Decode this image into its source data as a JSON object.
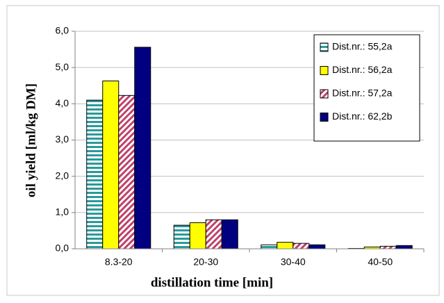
{
  "chart_data": {
    "type": "bar",
    "x_label": "distillation time [min]",
    "y_label": "oil yield [ml/kg DM]",
    "categories": [
      "8.3-20",
      "20-30",
      "30-40",
      "40-50"
    ],
    "series": [
      {
        "name": "Dist.nr.: 55,2a",
        "color": "#2a9a9a",
        "hatch": "horizontal",
        "values": [
          4.1,
          0.65,
          0.11,
          0.01
        ]
      },
      {
        "name": "Dist.nr.: 56,2a",
        "color": "#ffff00",
        "values": [
          4.63,
          0.72,
          0.18,
          0.05
        ]
      },
      {
        "name": "Dist.nr.: 57,2a",
        "color": "#c0406a",
        "hatch": "diagonal",
        "values": [
          4.23,
          0.8,
          0.15,
          0.07
        ]
      },
      {
        "name": "Dist.nr.: 62,2b",
        "color": "#000080",
        "values": [
          5.56,
          0.8,
          0.11,
          0.09
        ]
      }
    ],
    "ylim": [
      0,
      6
    ],
    "yticks": [
      {
        "value": 0,
        "label": "0,0"
      },
      {
        "value": 1,
        "label": "1,0"
      },
      {
        "value": 2,
        "label": "2,0"
      },
      {
        "value": 3,
        "label": "3,0"
      },
      {
        "value": 4,
        "label": "4,0"
      },
      {
        "value": 5,
        "label": "5,0"
      },
      {
        "value": 6,
        "label": "6,0"
      }
    ],
    "grid": true,
    "legend": "upper right"
  }
}
